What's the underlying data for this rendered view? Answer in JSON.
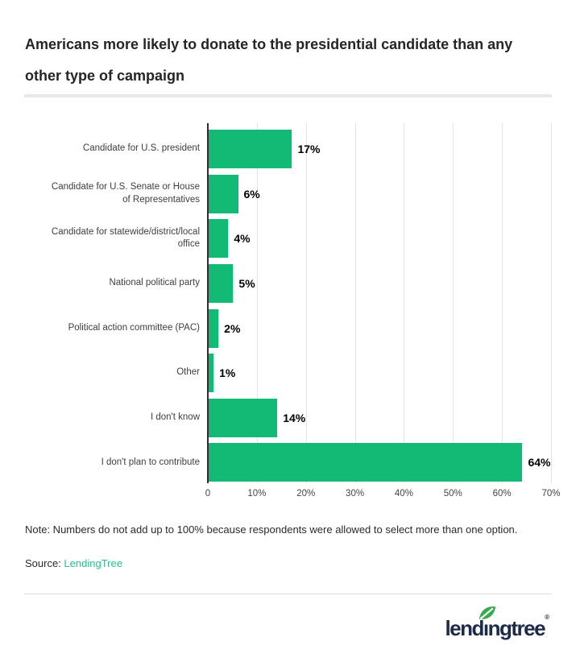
{
  "header": {
    "title": "Americans more likely to donate to the presidential candidate than any\nother type of campaign"
  },
  "chart_data": {
    "type": "bar",
    "orientation": "horizontal",
    "title": "Americans more likely to donate to the presidential candidate than any other type of campaign",
    "categories": [
      "Candidate for U.S. president",
      "Candidate for U.S. Senate or House\nof Representatives",
      "Candidate for statewide/district/local\noffice",
      "National political party",
      "Political action committee (PAC)",
      "Other",
      "I don't know",
      "I don't plan to contribute"
    ],
    "values": [
      17,
      6,
      4,
      5,
      2,
      1,
      14,
      64
    ],
    "annotations": [
      "17%",
      "6%",
      "4%",
      "5%",
      "2%",
      "1%",
      "14%",
      "64%"
    ],
    "tick_labels": [
      "0",
      "10%",
      "20%",
      "30%",
      "40%",
      "50%",
      "60%",
      "70%"
    ],
    "xlim": [
      0,
      70
    ],
    "grid": true,
    "legend": "none",
    "bar_color": "#13ba75",
    "axis_line_color": "#2e2e2e",
    "gridline_color": "#e3e3e3"
  },
  "note": {
    "text": "Note: Numbers do not add up to 100% because respondents were allowed to select more than one option."
  },
  "source": {
    "prefix": "Source: ",
    "link_text": "LendingTree",
    "link_color": "#21c38b"
  },
  "footer": {
    "logo_part1": "lend",
    "logo_i": "ı",
    "logo_part2": "ngtree",
    "logo_reg": "®",
    "logo_color": "#1c2b49",
    "leaf_color": "#35ab4c"
  }
}
